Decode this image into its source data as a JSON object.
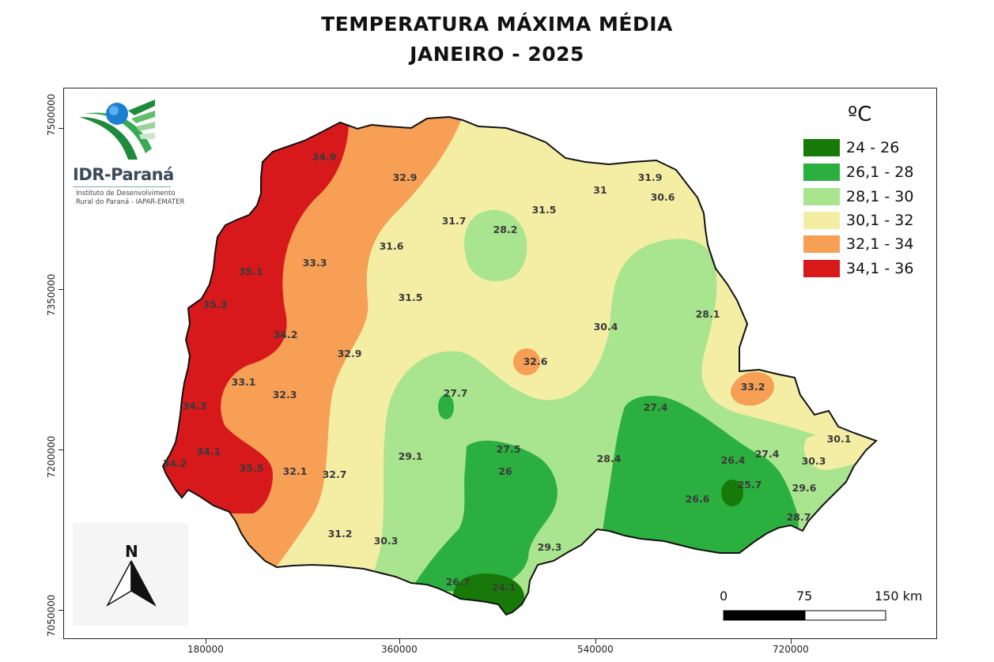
{
  "title_line1": "TEMPERATURA MÁXIMA MÉDIA",
  "title_line2": "JANEIRO - 2025",
  "axes": {
    "y_ticks": [
      "7500000",
      "7350000",
      "7200000",
      "7050000"
    ],
    "x_ticks": [
      "180000",
      "360000",
      "540000",
      "720000"
    ]
  },
  "logo": {
    "name": "IDR-Paraná",
    "subtitle_line1": "Instituto de Desenvolvimento",
    "subtitle_line2": "Rural do Paraná - IAPAR-EMATER"
  },
  "legend": {
    "title": "ºC",
    "items": [
      {
        "label": "24 - 26",
        "color": "#177a08"
      },
      {
        "label": "26,1 - 28",
        "color": "#2bb040"
      },
      {
        "label": "28,1 - 30",
        "color": "#a9e48f"
      },
      {
        "label": "30,1 - 32",
        "color": "#f4eea5"
      },
      {
        "label": "32,1 - 34",
        "color": "#f69f55"
      },
      {
        "label": "34,1 - 36",
        "color": "#d7191c"
      }
    ]
  },
  "north_arrow": {
    "label": "N"
  },
  "scale_bar": {
    "labels": [
      "0",
      "75",
      "150 km"
    ]
  },
  "values": [
    "34.9",
    "32.9",
    "31.9",
    "31",
    "30.6",
    "31.7",
    "28.2",
    "31.5",
    "31.6",
    "33.3",
    "35.1",
    "35.3",
    "31.5",
    "30.4",
    "28.1",
    "34.2",
    "32.9",
    "32.6",
    "33.1",
    "32.3",
    "33.2",
    "27.7",
    "34.3",
    "27.4",
    "30.1",
    "34.1",
    "27.5",
    "29.1",
    "28.4",
    "26.4",
    "27.4",
    "30.3",
    "34.2",
    "35.5",
    "32.1",
    "32.7",
    "26",
    "25.7",
    "29.6",
    "26.6",
    "28.7",
    "31.2",
    "30.3",
    "29.3",
    "26.7",
    "24.1"
  ]
}
